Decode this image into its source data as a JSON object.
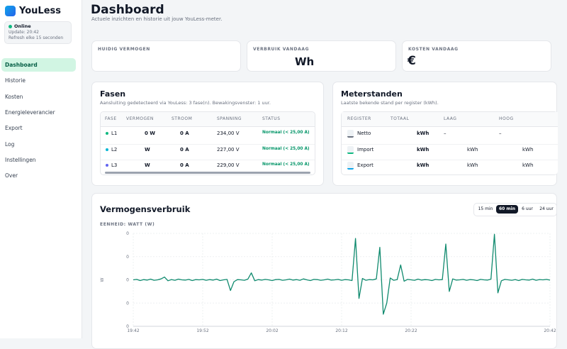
{
  "sidebar": {
    "app_name": "YouLess",
    "status": "Online",
    "update": "Update: 20:42",
    "refresh": "Refresh elke 15 seconden",
    "nav": [
      "Dashboard",
      "Historie",
      "Kosten",
      "Energieleverancier",
      "Export",
      "Log",
      "Instellingen",
      "Over"
    ],
    "active_nav": 0
  },
  "header": {
    "title": "Dashboard",
    "subtitle": "Actuele inzichten en historie uit jouw YouLess-meter."
  },
  "stats": [
    {
      "label": "HUIDIG VERMOGEN"
    },
    {
      "label": "VERBRUIK VANDAAG",
      "value": "Wh"
    },
    {
      "label": "KOSTEN VANDAAG",
      "value": "€"
    }
  ],
  "fasen": {
    "title": "Fasen",
    "subtitle": "Aansluiting gedetecteerd via YouLess: 3 fase(n). Bewakingsvenster: 1 uur.",
    "columns": [
      "FASE",
      "VERMOGEN",
      "STROOM",
      "SPANNING",
      "STATUS"
    ],
    "rows": [
      [
        "L1",
        "0 W",
        "0 A",
        "234,00 V",
        "Normaal (< 25,00 A)"
      ],
      [
        "L2",
        "W",
        "0 A",
        "227,00 V",
        "Normaal (< 25,00 A)"
      ],
      [
        "L3",
        "W",
        "0 A",
        "229,00 V",
        "Normaal (< 25,00 A)"
      ]
    ],
    "dot_colors": [
      "#10b981",
      "#06b6d4",
      "#6366f1"
    ]
  },
  "meterstanden": {
    "title": "Meterstanden",
    "subtitle": "Laatste bekende stand per register (kWh).",
    "columns": [
      "REGISTER",
      "TOTAAL",
      "LAAG",
      "HOOG"
    ],
    "rows": [
      [
        "Netto",
        "kWh",
        "–",
        "–"
      ],
      [
        "Import",
        "kWh",
        "kWh",
        "kWh"
      ],
      [
        "Export",
        "kWh",
        "kWh",
        "kWh"
      ]
    ]
  },
  "chart_panel": {
    "title": "Vermogensverbruik",
    "ranges": [
      "15 min",
      "60 min",
      "6 uur",
      "24 uur"
    ],
    "active_range": 1,
    "unit_label": "EENHEID: WATT (W)"
  },
  "chart_data": {
    "type": "line",
    "y_label": "W",
    "color": "#0f8a6e",
    "xlim": [
      0,
      120
    ],
    "xticks": [
      {
        "value": 0,
        "label": "19:42"
      },
      {
        "value": 20,
        "label": "19:52"
      },
      {
        "value": 40,
        "label": "20:02"
      },
      {
        "value": 60,
        "label": "20:12"
      },
      {
        "value": 80,
        "label": "20:22"
      },
      {
        "value": 120,
        "label": "20:42"
      }
    ],
    "ylim": [
      -1000,
      1000
    ],
    "yticks": [
      {
        "value": 1000,
        "label": "0"
      },
      {
        "value": 500,
        "label": "0"
      },
      {
        "value": 0,
        "label": "0"
      },
      {
        "value": -500,
        "label": "0"
      },
      {
        "value": -1000,
        "label": "0"
      }
    ],
    "grid": true,
    "values": [
      0,
      10,
      -15,
      5,
      -5,
      15,
      -10,
      0,
      20,
      60,
      -20,
      5,
      -10,
      15,
      0,
      -5,
      10,
      -15,
      5,
      0,
      10,
      -10,
      5,
      -5,
      15,
      -15,
      0,
      10,
      -230,
      -40,
      5,
      0,
      -10,
      15,
      150,
      -20,
      5,
      -5,
      10,
      0,
      -15,
      5,
      10,
      -10,
      0,
      15,
      -5,
      5,
      -10,
      20,
      0,
      -15,
      10,
      5,
      -10,
      0,
      15,
      -5,
      0,
      10,
      -10,
      5,
      0,
      -15,
      890,
      -400,
      30,
      -10,
      5,
      0,
      20,
      700,
      -740,
      -500,
      40,
      -10,
      5,
      320,
      -30,
      10,
      0,
      -10,
      15,
      -5,
      5,
      0,
      -15,
      10,
      0,
      5,
      770,
      -250,
      20,
      -5,
      0,
      10,
      -10,
      5,
      0,
      -15,
      10,
      0,
      -5,
      15,
      980,
      -280,
      -20,
      10,
      0,
      -10,
      5,
      -15,
      10,
      0,
      -5,
      15,
      -10,
      5,
      0,
      10,
      -5
    ]
  }
}
